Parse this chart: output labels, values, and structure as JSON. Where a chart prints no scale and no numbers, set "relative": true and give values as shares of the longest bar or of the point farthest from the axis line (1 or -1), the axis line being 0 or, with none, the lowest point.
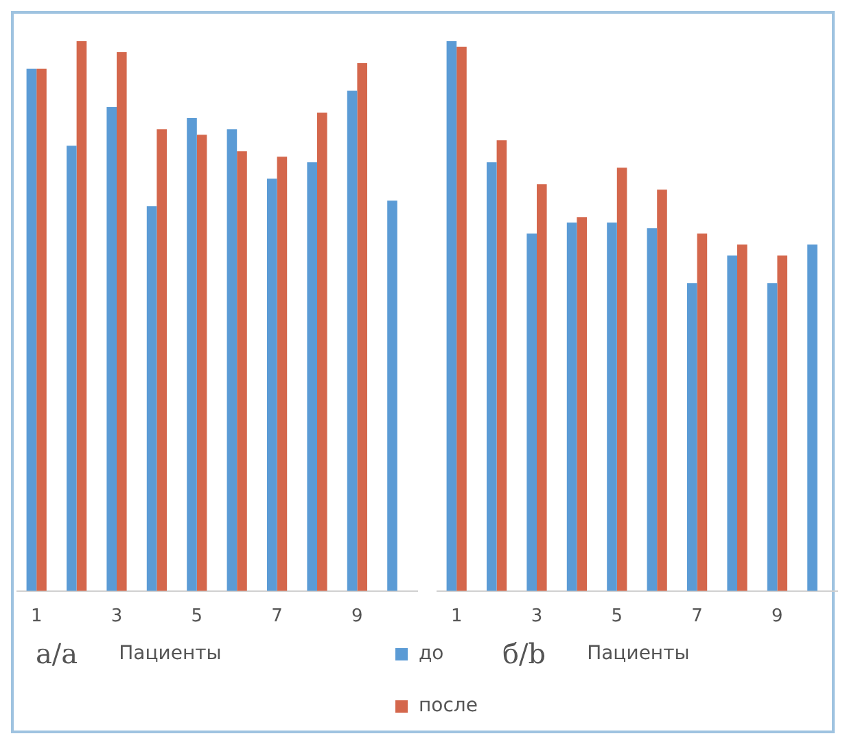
{
  "chart_data": [
    {
      "type": "bar",
      "relative": true,
      "xlabel": "Пациенты",
      "annotations": [
        "а/a"
      ],
      "categories": [
        "1",
        null,
        "3",
        null,
        "5",
        null,
        "7",
        null,
        "9",
        null
      ],
      "legend": false,
      "series": [
        {
          "color": "#5b9bd5",
          "values": [
            0.95,
            0.81,
            0.88,
            0.7,
            0.86,
            0.84,
            0.75,
            0.78,
            0.91,
            0.71
          ]
        },
        {
          "color": "#d4674c",
          "values": [
            0.95,
            1.0,
            0.98,
            0.84,
            0.83,
            0.8,
            0.79,
            0.87,
            0.96,
            null
          ]
        }
      ]
    },
    {
      "type": "bar",
      "relative": true,
      "xlabel": "Пациенты",
      "annotations": [
        "б/b"
      ],
      "categories": [
        "1",
        null,
        "3",
        null,
        "5",
        null,
        "7",
        null,
        "9",
        null
      ],
      "legend": "bottom left",
      "series": [
        {
          "name": "до",
          "color": "#5b9bd5",
          "values": [
            1.0,
            0.78,
            0.65,
            0.67,
            0.67,
            0.66,
            0.56,
            0.61,
            0.56,
            0.63
          ]
        },
        {
          "name": "после",
          "color": "#d4674c",
          "values": [
            0.99,
            0.82,
            0.74,
            0.68,
            0.77,
            0.73,
            0.65,
            0.63,
            0.61,
            null
          ]
        }
      ]
    }
  ]
}
